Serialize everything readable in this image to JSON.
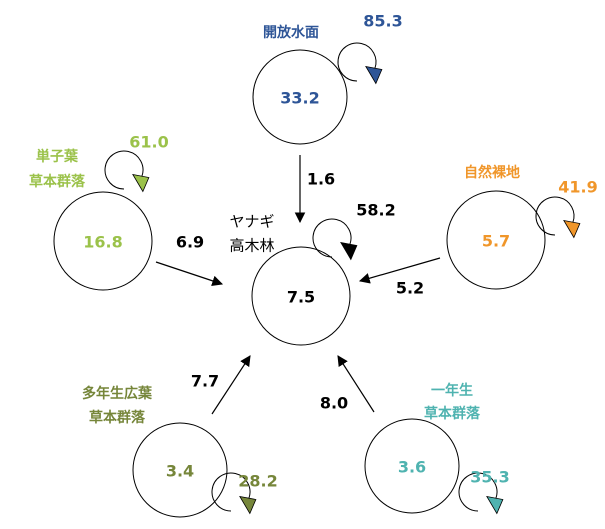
{
  "nodes": [
    {
      "label": [
        "開放水面"
      ],
      "value": "33.2",
      "loop": "85.3"
    },
    {
      "label": [
        "単子葉",
        "草本群落"
      ],
      "value": "16.8",
      "loop": "61.0"
    },
    {
      "label": [
        "自然裸地"
      ],
      "value": "5.7",
      "loop": "41.9"
    },
    {
      "label": [
        "ヤナギ",
        "高木林"
      ],
      "value": "7.5",
      "loop": "58.2"
    },
    {
      "label": [
        "多年生広葉",
        "草本群落"
      ],
      "value": "3.4",
      "loop": "28.2"
    },
    {
      "label": [
        "一年生",
        "草本群落"
      ],
      "value": "3.6",
      "loop": "35.3"
    }
  ],
  "edges": [
    {
      "value": "1.6"
    },
    {
      "value": "6.9"
    },
    {
      "value": "5.2"
    },
    {
      "value": "7.7"
    },
    {
      "value": "8.0"
    }
  ]
}
